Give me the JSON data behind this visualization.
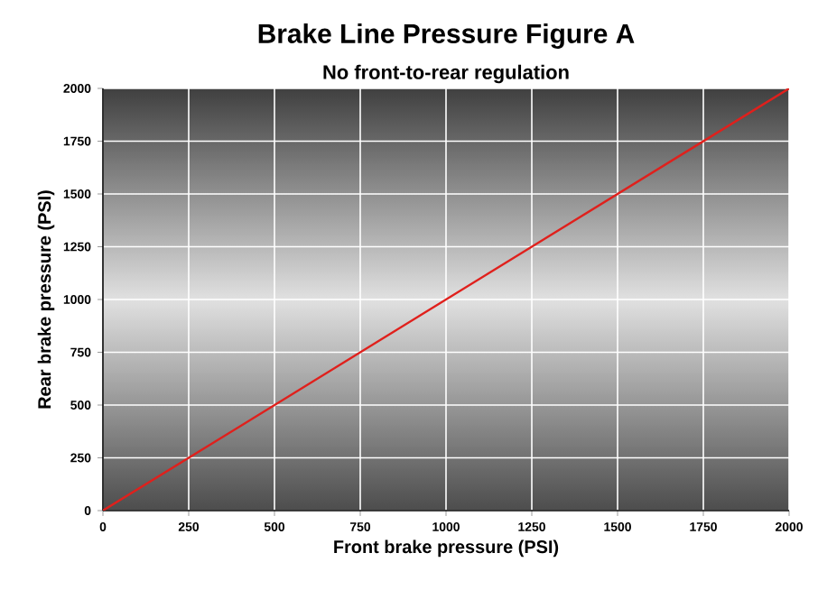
{
  "chart_data": {
    "type": "line",
    "title": "Brake Line Pressure Figure A",
    "subtitle": "No front-to-rear regulation",
    "xlabel": "Front brake pressure (PSI)",
    "ylabel": "Rear brake pressure (PSI)",
    "x": [
      0,
      2000
    ],
    "series": [
      {
        "color": "#e0201c",
        "values": [
          0,
          2000
        ]
      }
    ],
    "xlim": [
      0,
      2000
    ],
    "ylim": [
      0,
      2000
    ],
    "xticks": [
      0,
      250,
      500,
      750,
      1000,
      1250,
      1500,
      1750,
      2000
    ],
    "yticks": [
      0,
      250,
      500,
      750,
      1000,
      1250,
      1500,
      1750,
      2000
    ],
    "grid": true,
    "marker": "none",
    "line_style": "solid"
  }
}
